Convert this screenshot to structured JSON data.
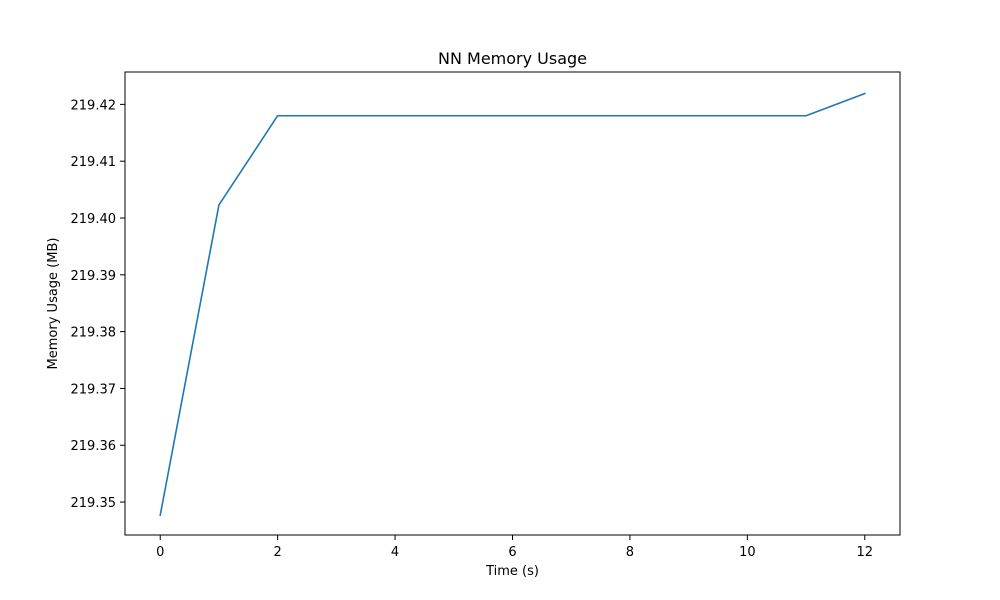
{
  "chart_data": {
    "type": "line",
    "title": "NN Memory Usage",
    "xlabel": "Time (s)",
    "ylabel": "Memory Usage (MB)",
    "xlim": [
      -0.6,
      12.6
    ],
    "ylim": [
      219.3442,
      219.4257
    ],
    "xticks": [
      0,
      2,
      4,
      6,
      8,
      10,
      12
    ],
    "yticks": [
      219.35,
      219.36,
      219.37,
      219.38,
      219.39,
      219.4,
      219.41,
      219.42
    ],
    "ytick_labels": [
      "219.35",
      "219.36",
      "219.37",
      "219.38",
      "219.39",
      "219.40",
      "219.41",
      "219.42"
    ],
    "grid": false,
    "legend": "none",
    "series": [
      {
        "color": "#1f77b4",
        "x": [
          0,
          1,
          2,
          3,
          4,
          5,
          6,
          7,
          8,
          9,
          10,
          11,
          12
        ],
        "y": [
          219.3477,
          219.4023,
          219.418,
          219.418,
          219.418,
          219.418,
          219.418,
          219.418,
          219.418,
          219.418,
          219.418,
          219.418,
          219.4219
        ]
      }
    ]
  }
}
